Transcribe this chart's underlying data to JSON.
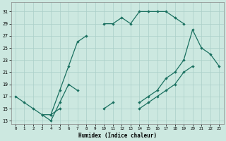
{
  "xlabel": "Humidex (Indice chaleur)",
  "bg_color": "#cce8e0",
  "grid_color": "#aacfc8",
  "line_color": "#1a7060",
  "xlim": [
    -0.5,
    23.5
  ],
  "ylim": [
    12.5,
    32.5
  ],
  "xticks": [
    0,
    1,
    2,
    3,
    4,
    5,
    6,
    7,
    8,
    9,
    10,
    11,
    12,
    13,
    14,
    15,
    16,
    17,
    18,
    19,
    20,
    21,
    22,
    23
  ],
  "yticks": [
    13,
    15,
    17,
    19,
    21,
    23,
    25,
    27,
    29,
    31
  ],
  "series": [
    {
      "segments": [
        {
          "x": [
            0,
            1,
            2,
            3,
            4,
            5,
            6,
            7,
            8
          ],
          "y": [
            17,
            16,
            15,
            14,
            14,
            18,
            22,
            26,
            27
          ]
        },
        {
          "x": [
            10,
            11,
            12,
            13,
            14,
            15,
            16,
            17,
            18,
            19
          ],
          "y": [
            29,
            29,
            30,
            29,
            31,
            31,
            31,
            31,
            30,
            29
          ]
        }
      ]
    },
    {
      "segments": [
        {
          "x": [
            3,
            4,
            5,
            6,
            7
          ],
          "y": [
            14,
            13,
            16,
            19,
            18
          ]
        },
        {
          "x": [
            14,
            15,
            16,
            17,
            18,
            19,
            20,
            21,
            22,
            23
          ],
          "y": [
            16,
            17,
            18,
            20,
            21,
            23,
            28,
            25,
            24,
            22
          ]
        }
      ]
    },
    {
      "segments": [
        {
          "x": [
            4,
            5
          ],
          "y": [
            14,
            15
          ]
        },
        {
          "x": [
            10,
            11
          ],
          "y": [
            15,
            16
          ]
        },
        {
          "x": [
            14,
            15,
            16,
            17,
            18,
            19,
            20
          ],
          "y": [
            15,
            16,
            17,
            18,
            19,
            21,
            22
          ]
        }
      ]
    }
  ]
}
